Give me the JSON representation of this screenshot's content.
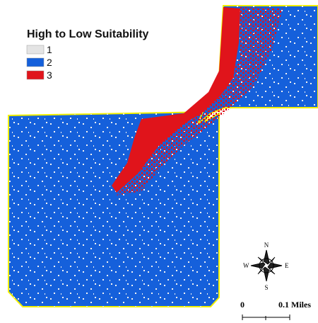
{
  "legend": {
    "title": "High to Low Suitability",
    "items": [
      {
        "label": "1",
        "color": "#e4e4e4"
      },
      {
        "label": "2",
        "color": "#1560db"
      },
      {
        "label": "3",
        "color": "#e0141b"
      }
    ]
  },
  "compass": {
    "north": "N",
    "south": "S",
    "east": "E",
    "west": "W"
  },
  "scale_bar": {
    "labels": [
      "0",
      "0.1 Miles"
    ]
  }
}
